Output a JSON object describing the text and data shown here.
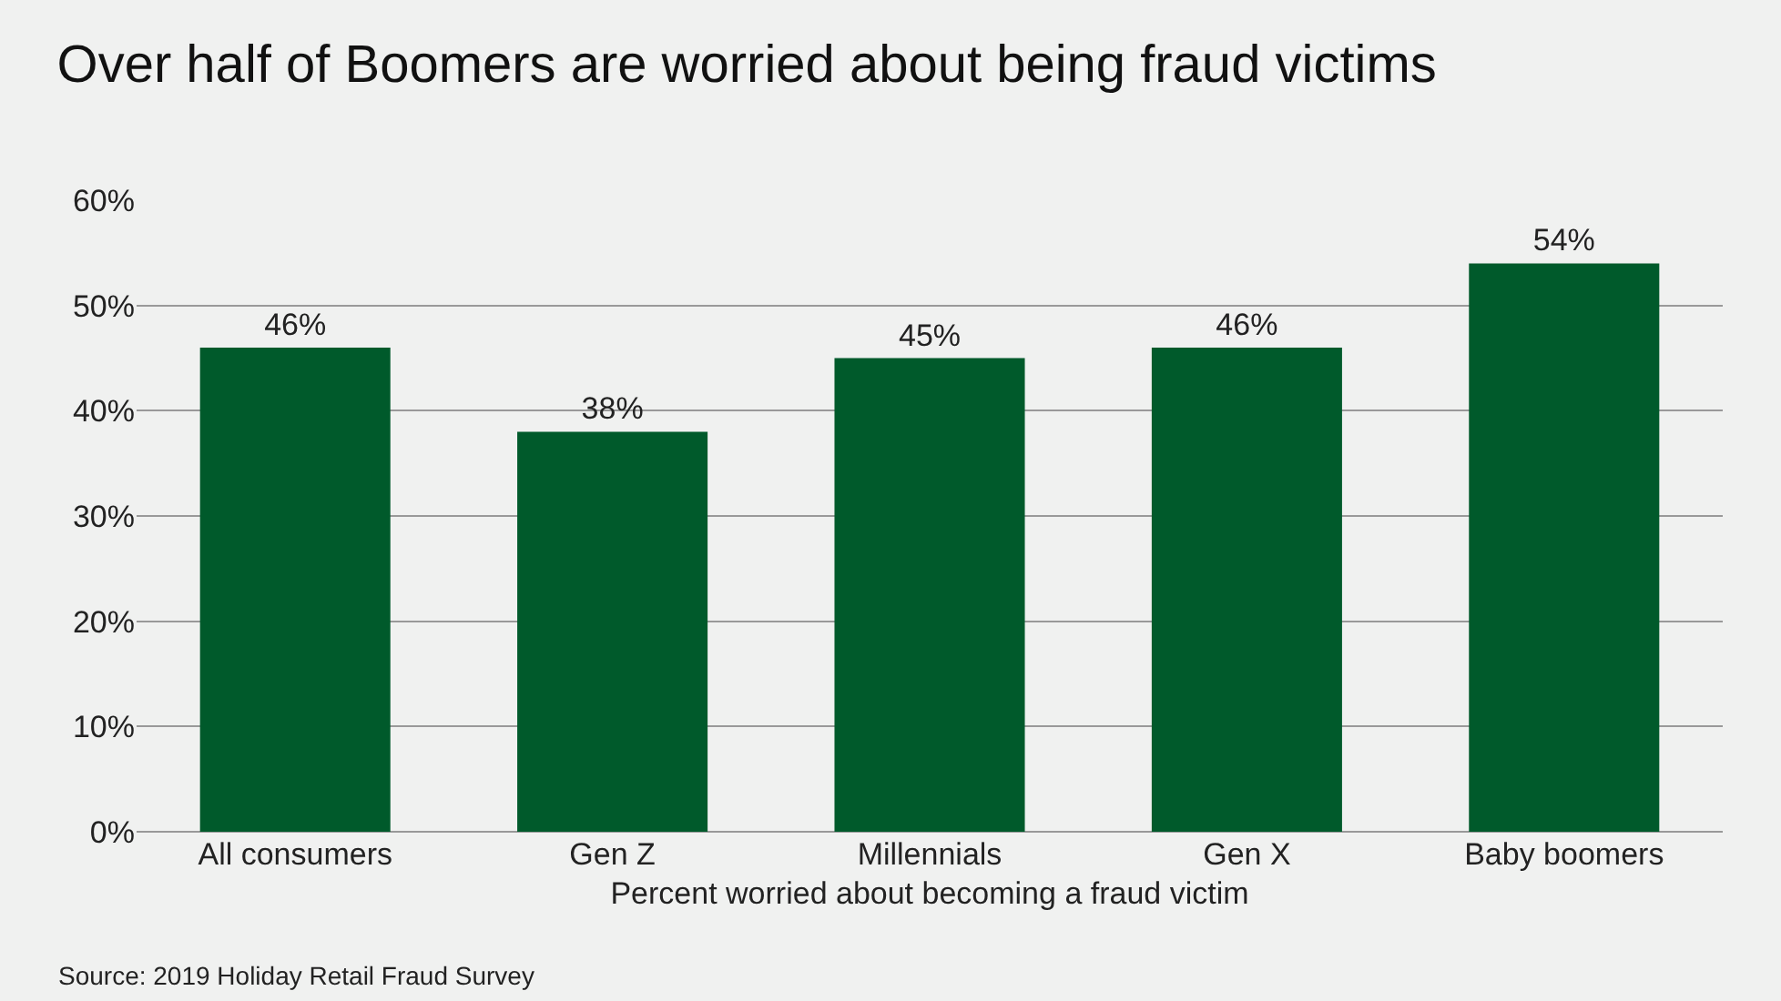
{
  "chart_data": {
    "type": "bar",
    "title": "Over half of Boomers are worried about being fraud victims",
    "xlabel": "Percent worried about becoming a fraud victim",
    "categories": [
      "All consumers",
      "Gen Z",
      "Millennials",
      "Gen X",
      "Baby boomers"
    ],
    "values": [
      46,
      38,
      45,
      46,
      54
    ],
    "value_labels": [
      "46%",
      "38%",
      "45%",
      "46%",
      "54%"
    ],
    "color": "#005a2b",
    "ylim": [
      0,
      60
    ],
    "yticks": [
      {
        "value": 0,
        "label": "0%"
      },
      {
        "value": 10,
        "label": "10%"
      },
      {
        "value": 20,
        "label": "20%"
      },
      {
        "value": 30,
        "label": "30%"
      },
      {
        "value": 40,
        "label": "40%"
      },
      {
        "value": 50,
        "label": "50%"
      },
      {
        "value": 60,
        "label": "60%"
      }
    ],
    "grid": "y",
    "annotations": [
      "Source: 2019 Holiday Retail Fraud Survey"
    ]
  }
}
